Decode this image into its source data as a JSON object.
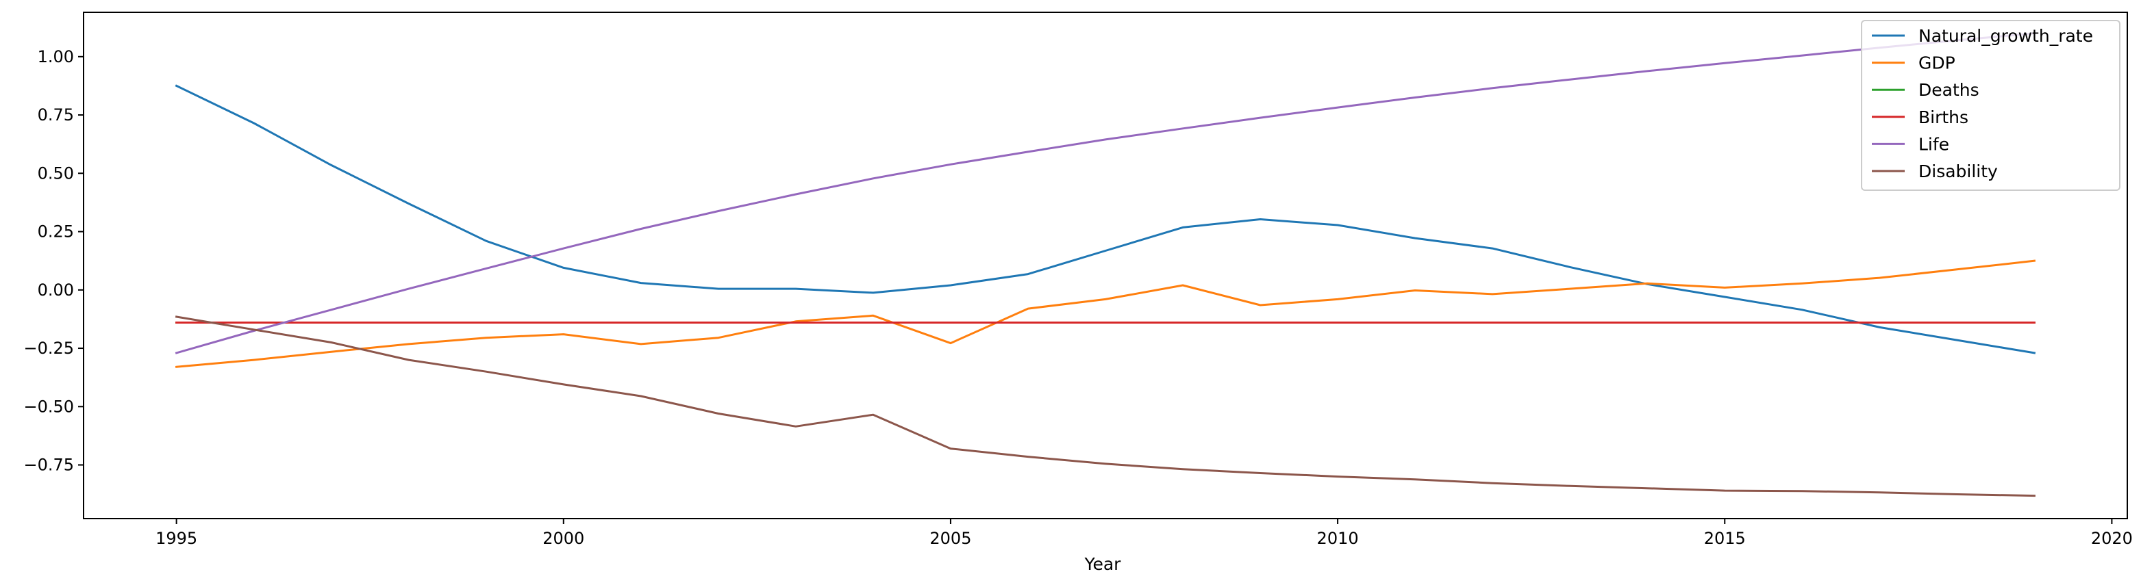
{
  "chart_data": {
    "type": "line",
    "title": "",
    "xlabel": "Year",
    "ylabel": "",
    "xlim": [
      1993.8,
      2020.2
    ],
    "ylim": [
      -0.98,
      1.19
    ],
    "xticks": [
      1995,
      2000,
      2005,
      2010,
      2015,
      2020
    ],
    "yticks": [
      {
        "value": 1.0,
        "label": "1.00"
      },
      {
        "value": 0.75,
        "label": "0.75"
      },
      {
        "value": 0.5,
        "label": "0.50"
      },
      {
        "value": 0.25,
        "label": "0.25"
      },
      {
        "value": 0.0,
        "label": "0.00"
      },
      {
        "value": -0.25,
        "label": "−0.25"
      },
      {
        "value": -0.5,
        "label": "−0.50"
      },
      {
        "value": -0.75,
        "label": "−0.75"
      }
    ],
    "grid": false,
    "legend_position": "top-right",
    "x": [
      1995,
      1996,
      1997,
      1998,
      1999,
      2000,
      2001,
      2002,
      2003,
      2004,
      2005,
      2006,
      2007,
      2008,
      2009,
      2010,
      2011,
      2012,
      2013,
      2014,
      2015,
      2016,
      2017,
      2018,
      2019
    ],
    "series": [
      {
        "name": "Natural_growth_rate",
        "color": "#1f77b4",
        "values": [
          0.875,
          0.715,
          0.535,
          0.37,
          0.21,
          0.095,
          0.03,
          0.005,
          0.005,
          -0.012,
          0.02,
          0.068,
          0.168,
          0.268,
          0.303,
          0.278,
          0.222,
          0.178,
          0.098,
          0.025,
          -0.03,
          -0.085,
          -0.16,
          -0.215,
          -0.27
        ]
      },
      {
        "name": "GDP",
        "color": "#ff7f0e",
        "values": [
          -0.33,
          -0.3,
          -0.265,
          -0.232,
          -0.205,
          -0.19,
          -0.232,
          -0.205,
          -0.135,
          -0.11,
          -0.228,
          -0.08,
          -0.04,
          0.02,
          -0.065,
          -0.04,
          -0.002,
          -0.018,
          0.005,
          0.028,
          0.01,
          0.028,
          0.052,
          0.088,
          0.125
        ]
      },
      {
        "name": "Deaths",
        "color": "#2ca02c",
        "values": [
          -0.14,
          -0.14,
          -0.14,
          -0.14,
          -0.14,
          -0.14,
          -0.14,
          -0.14,
          -0.14,
          -0.14,
          -0.14,
          -0.14,
          -0.14,
          -0.14,
          -0.14,
          -0.14,
          -0.14,
          -0.14,
          -0.14,
          -0.14,
          -0.14,
          -0.14,
          -0.14,
          -0.14,
          -0.14
        ]
      },
      {
        "name": "Births",
        "color": "#d62728",
        "values": [
          -0.14,
          -0.14,
          -0.14,
          -0.14,
          -0.14,
          -0.14,
          -0.14,
          -0.14,
          -0.14,
          -0.14,
          -0.14,
          -0.14,
          -0.14,
          -0.14,
          -0.14,
          -0.14,
          -0.14,
          -0.14,
          -0.14,
          -0.14,
          -0.14,
          -0.14,
          -0.14,
          -0.14,
          -0.14
        ]
      },
      {
        "name": "Life",
        "color": "#9467bd",
        "values": [
          -0.27,
          -0.175,
          -0.085,
          0.005,
          0.092,
          0.178,
          0.262,
          0.338,
          0.41,
          0.478,
          0.538,
          0.592,
          0.645,
          0.692,
          0.738,
          0.782,
          0.825,
          0.865,
          0.902,
          0.938,
          0.972,
          1.005,
          1.038,
          1.07,
          1.1
        ]
      },
      {
        "name": "Disability",
        "color": "#8c564b",
        "values": [
          -0.115,
          -0.17,
          -0.225,
          -0.3,
          -0.35,
          -0.405,
          -0.455,
          -0.53,
          -0.585,
          -0.535,
          -0.68,
          -0.715,
          -0.745,
          -0.768,
          -0.785,
          -0.8,
          -0.812,
          -0.828,
          -0.84,
          -0.85,
          -0.86,
          -0.862,
          -0.868,
          -0.876,
          -0.882
        ]
      }
    ]
  }
}
